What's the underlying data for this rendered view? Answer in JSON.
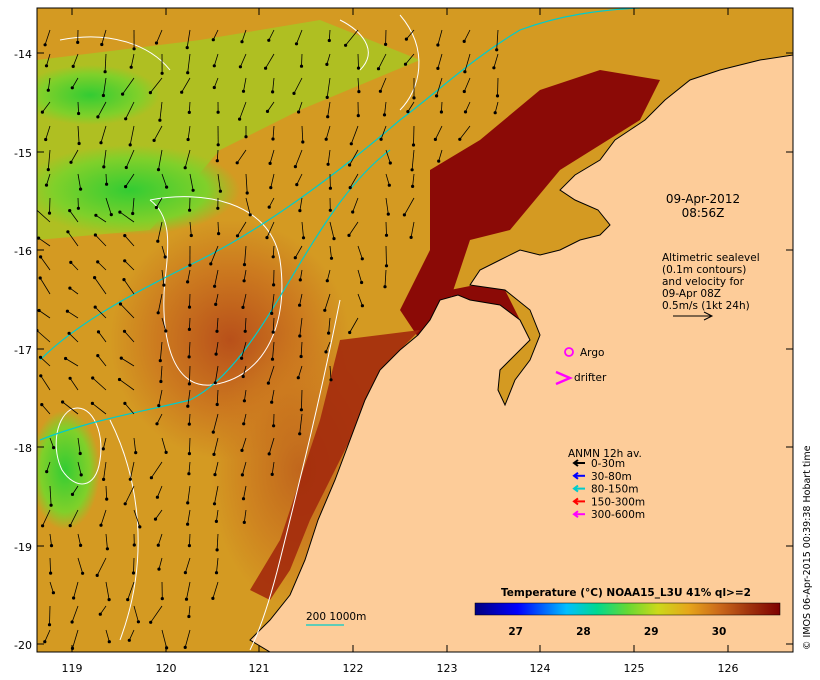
{
  "map": {
    "datetime": {
      "date": "09-Apr-2012",
      "time": "08:56Z"
    },
    "altimetry_note": [
      "Altimetric sealevel",
      "(0.1m contours)",
      "and velocity for",
      "09-Apr 08Z",
      "0.5m/s (1kt 24h)"
    ],
    "argo_label": "Argo",
    "drifter_label": "drifter",
    "anmn": {
      "title": "ANMN 12h av.",
      "items": [
        {
          "label": "0-30m",
          "color": "#000000"
        },
        {
          "label": "30-80m",
          "color": "#0000ff"
        },
        {
          "label": "80-150m",
          "color": "#00cccc"
        },
        {
          "label": "150-300m",
          "color": "#ff0000"
        },
        {
          "label": "300-600m",
          "color": "#ff00ff"
        }
      ]
    },
    "depth_scale_label": "200  1000m",
    "colorbar": {
      "title": "Temperature (°C) NOAA15_L3U 41% ql>=2",
      "min": 26.4,
      "max": 30.9,
      "ticks": [
        "27",
        "28",
        "29",
        "30"
      ]
    },
    "credit": "© IMOS 06-Apr-2015 00:39:38 Hobart time",
    "axes": {
      "x_ticks": [
        "119",
        "120",
        "121",
        "122",
        "123",
        "124",
        "125",
        "126"
      ],
      "y_ticks": [
        "-14",
        "-15",
        "-16",
        "-17",
        "-18",
        "-19",
        "-20"
      ],
      "lon_range": [
        118.65,
        126.7
      ],
      "lat_range": [
        -20.1,
        -13.6
      ]
    },
    "colors": {
      "land": "#fdcc99",
      "shelf_contour": "#00cccc",
      "sst_contour": "#ffffff"
    }
  }
}
